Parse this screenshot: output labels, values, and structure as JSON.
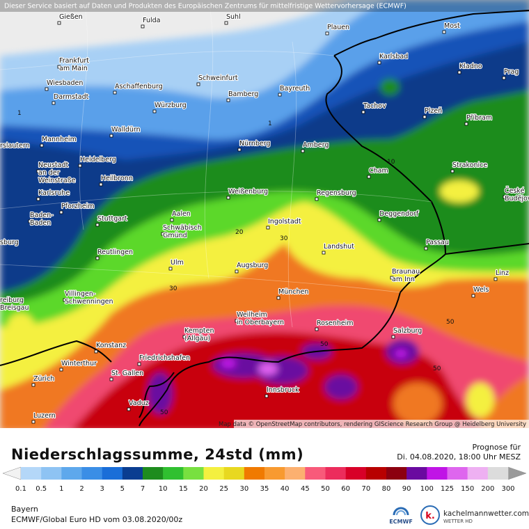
{
  "header": {
    "notice": "Dieser Service basiert auf Daten und Produkten des Europäischen Zentrums für mittelfristige Wettervorhersage (ECMWF)"
  },
  "map": {
    "cities": [
      "Gießen",
      "Fulda",
      "Suhl",
      "Plauen",
      "Most",
      [
        "Frankfurt",
        "am Main"
      ],
      "Wiesbaden",
      "Aschaffenburg",
      "Schweinfurt",
      "Karlsbad",
      "Kladno",
      "Prag",
      "Darmstadt",
      "Bamberg",
      "Bayreuth",
      "Würzburg",
      "Tachov",
      "Plzeň",
      "Příbram",
      "Walldürn",
      "Mannheim",
      "Nürnberg",
      "Amberg",
      "rslautern",
      "Heidelberg",
      "Cham",
      "Strakonice",
      [
        "Neustadt",
        "an der",
        "Weinstraße"
      ],
      "Heilbronn",
      "Weißenburg",
      "Regensburg",
      [
        "České",
        "Budějovice"
      ],
      "Karlsruhe",
      "Pforzheim",
      "Deggendorf",
      [
        "Baden-",
        "Baden"
      ],
      "Stuttgart",
      "Aalen",
      [
        "Schwäbisch",
        "Gmünd"
      ],
      "Ingolstadt",
      "sburg",
      "Passau",
      "Landshut",
      "Reutlingen",
      "Ulm",
      "Augsburg",
      [
        "Braunau",
        "am Inn"
      ],
      "Linz",
      "Wels",
      [
        "reiburg",
        "Breisgau"
      ],
      [
        "Villingen-",
        "Schwenningen"
      ],
      "München",
      [
        "Weilheim",
        "in Oberbayern"
      ],
      "Rosenheim",
      [
        "Kempten",
        "(Allgäu)"
      ],
      "Salzburg",
      "Konstanz",
      "Friedrichshafen",
      "Winterthur",
      "St. Gallen",
      "Zürich",
      "Innsbruck",
      "Vaduz",
      "Luzern"
    ],
    "contour_labels": [
      "1",
      "1",
      "10",
      "20",
      "30",
      "30",
      "50",
      "50",
      "50",
      "50"
    ],
    "attribution": "Map data © OpenStreetMap contributors, rendering GIScience Research Group @ Heidelberg University"
  },
  "legend": {
    "title": "Niederschlagssumme, 24std (mm)",
    "forecast_label": "Prognose für",
    "forecast_time": "Di. 04.08.2020, 18:00 Uhr MESZ",
    "bounds": [
      0.1,
      0.5,
      1,
      2,
      3,
      5,
      7,
      10,
      15,
      20,
      25,
      30,
      35,
      40,
      45,
      50,
      60,
      70,
      80,
      90,
      100,
      125,
      150,
      200,
      300
    ],
    "colors": [
      "#b4d7f8",
      "#8ec3f3",
      "#5ea8ec",
      "#3a8ee6",
      "#1a6ed8",
      "#0a3d91",
      "#1e8c1e",
      "#30c030",
      "#78e040",
      "#f4f040",
      "#e8d820",
      "#f07a00",
      "#f89a30",
      "#fcb070",
      "#f85a7a",
      "#ec2c5c",
      "#d80028",
      "#b80000",
      "#8c0010",
      "#6a0aa0",
      "#c014e6",
      "#de66ee",
      "#eeb0f2",
      "#dcdcdc"
    ],
    "under_color": "#f2f2f2",
    "over_color": "#9a9a9a"
  },
  "footer": {
    "region": "Bayern",
    "model": "ECMWF/Global Euro HD vom  03.08.2020/00z",
    "ecmwf_logo": "ECMWF",
    "logo_letter": "k.",
    "site": "kachelmannwetter.com",
    "site_sub": "WETTER HD"
  }
}
